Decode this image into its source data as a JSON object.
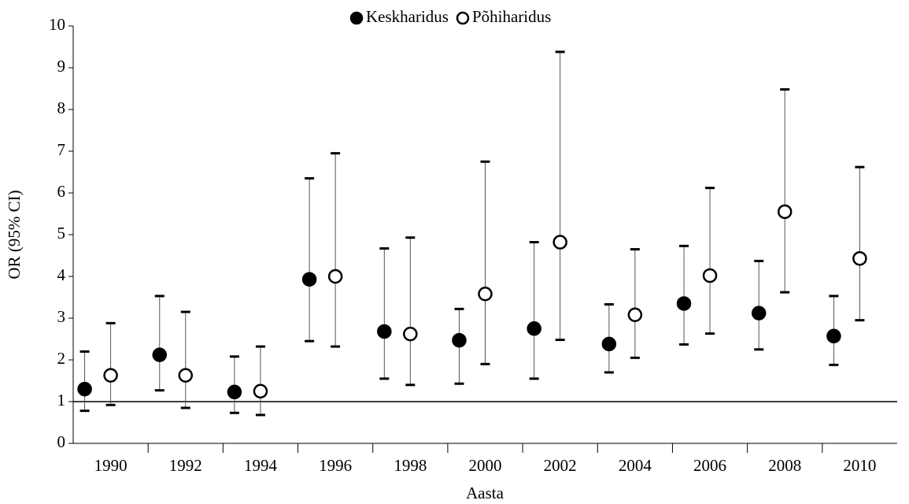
{
  "chart_data": {
    "type": "errorbar-points",
    "x_label": "Aasta",
    "y_label": "OR (95% CI)",
    "categories": [
      "1990",
      "1992",
      "1994",
      "1996",
      "1998",
      "2000",
      "2002",
      "2004",
      "2006",
      "2008",
      "2010"
    ],
    "series": [
      {
        "name": "Keskharidus",
        "marker": "filled",
        "color": "#000000",
        "values": [
          1.3,
          2.12,
          1.23,
          3.93,
          2.68,
          2.47,
          2.75,
          2.38,
          3.35,
          3.12,
          2.57
        ],
        "lower": [
          0.78,
          1.27,
          0.73,
          2.45,
          1.55,
          1.43,
          1.55,
          1.7,
          2.37,
          2.25,
          1.88
        ],
        "upper": [
          2.2,
          3.53,
          2.08,
          6.35,
          4.67,
          3.22,
          4.82,
          3.33,
          4.73,
          4.37,
          3.53
        ]
      },
      {
        "name": "Põhiharidus",
        "marker": "open",
        "color": "#000000",
        "values": [
          1.63,
          1.63,
          1.25,
          4.0,
          2.62,
          3.58,
          4.82,
          3.08,
          4.02,
          5.55,
          4.43
        ],
        "lower": [
          0.92,
          0.85,
          0.68,
          2.32,
          1.4,
          1.9,
          2.48,
          2.05,
          2.63,
          3.62,
          2.95
        ],
        "upper": [
          2.88,
          3.15,
          2.32,
          6.95,
          4.93,
          6.75,
          9.38,
          4.65,
          6.12,
          8.48,
          6.62
        ]
      }
    ],
    "ylim": [
      0,
      10
    ],
    "yticks": [
      0,
      1,
      2,
      3,
      4,
      5,
      6,
      7,
      8,
      9,
      10
    ],
    "reference_line": 1,
    "legend": "top"
  }
}
